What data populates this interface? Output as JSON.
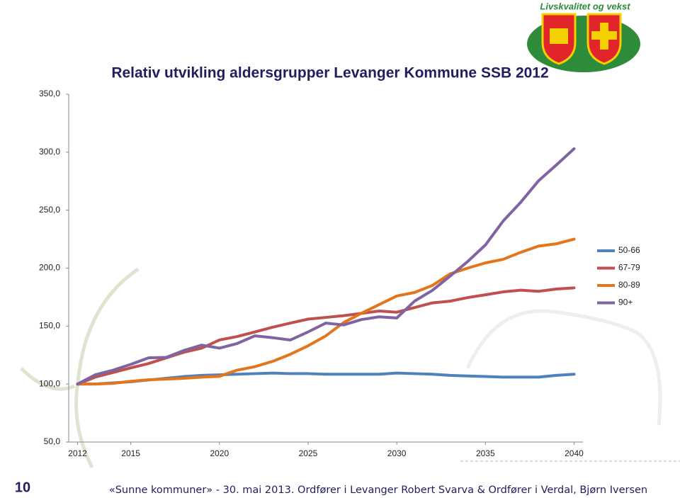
{
  "chart_data": {
    "type": "line",
    "title": "Relativ utvikling aldersgrupper Levanger Kommune SSB 2012",
    "x": [
      2012,
      2013,
      2014,
      2015,
      2016,
      2017,
      2018,
      2019,
      2020,
      2021,
      2022,
      2023,
      2024,
      2025,
      2026,
      2027,
      2028,
      2029,
      2030,
      2031,
      2032,
      2033,
      2034,
      2035,
      2036,
      2037,
      2038,
      2039,
      2040
    ],
    "series": [
      {
        "name": "50-66",
        "color": "#4f81bd",
        "values": [
          100,
          100,
          101,
          102,
          103.5,
          105,
          106.5,
          107.5,
          108,
          108.5,
          109,
          109.5,
          109,
          109,
          108.5,
          108.5,
          108.5,
          108.5,
          109.5,
          109,
          108.5,
          107.5,
          107,
          106.5,
          106,
          106,
          106,
          107.5,
          108.5
        ]
      },
      {
        "name": "67-79",
        "color": "#c0504d",
        "values": [
          100,
          106,
          110,
          114,
          117.7,
          122.6,
          127.5,
          131,
          138,
          141,
          145,
          149,
          152.6,
          156,
          157.5,
          159,
          161,
          163,
          162,
          166,
          170,
          171.5,
          174.6,
          177,
          179.5,
          181,
          180,
          182,
          183
        ]
      },
      {
        "name": "80-89",
        "color": "#e3751c",
        "values": [
          100,
          100,
          100.6,
          102.4,
          103.7,
          104.3,
          105,
          106,
          106.7,
          112,
          115,
          119.6,
          125.7,
          133,
          141.6,
          153,
          161,
          168.5,
          176,
          179,
          185,
          195,
          200,
          204.5,
          207.6,
          213.7,
          219,
          221,
          225
        ]
      },
      {
        "name": "90+",
        "color": "#8064a2",
        "values": [
          100,
          108,
          112,
          117,
          122.6,
          123,
          129,
          133.6,
          131,
          135,
          141.6,
          140,
          138,
          145,
          152.6,
          151,
          155.6,
          158,
          157,
          171.5,
          180.7,
          193,
          205.7,
          220,
          240.6,
          257,
          275.4,
          289,
          303
        ]
      }
    ],
    "xlim": [
      2011.5,
      2040.5
    ],
    "xticks": [
      2012,
      2015,
      2020,
      2025,
      2030,
      2035,
      2040
    ],
    "ylim": [
      50,
      350
    ],
    "yticks": [
      {
        "value": 50,
        "label": "50,0"
      },
      {
        "value": 100,
        "label": "100,0"
      },
      {
        "value": 150,
        "label": "150,0"
      },
      {
        "value": 200,
        "label": "200,0"
      },
      {
        "value": 250,
        "label": "250,0"
      },
      {
        "value": 300,
        "label": "300,0"
      },
      {
        "value": 350,
        "label": "350,0"
      }
    ],
    "grid": false,
    "legend": "right"
  },
  "slide": {
    "number": "10",
    "footer": "«Sunne kommuner» - 30. mai 2013. Ordfører i Levanger Robert Svarva & Ordfører i Verdal, Bjørn Iversen",
    "logo_text": "Livskvalitet og vekst"
  }
}
